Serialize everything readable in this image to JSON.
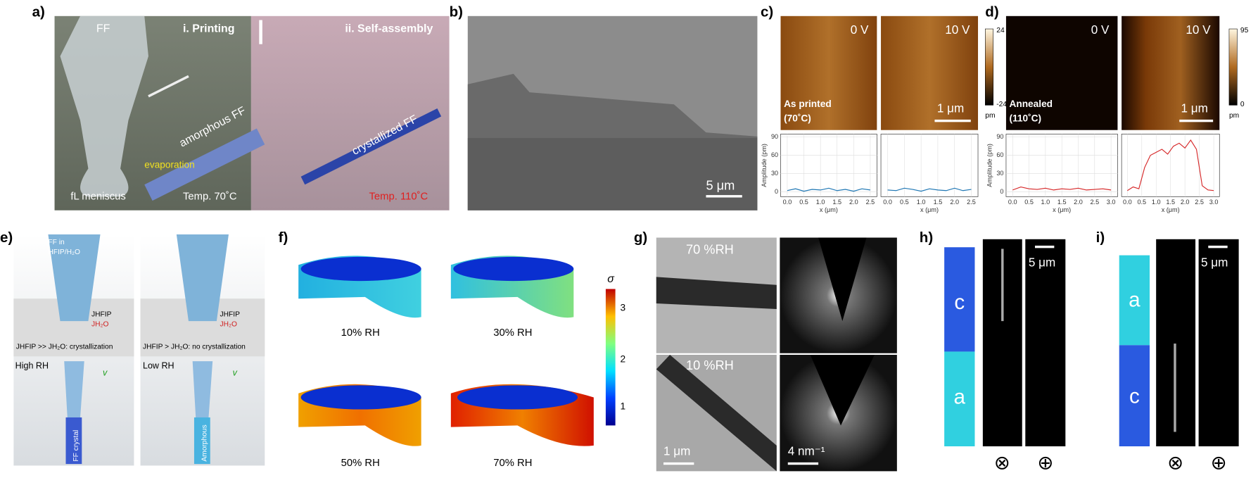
{
  "panels": {
    "a": {
      "label": "a)",
      "ff": "FF",
      "step1": "i. Printing",
      "step2": "ii. Self-assembly",
      "amorphous": "amorphous FF",
      "crystallized": "crystallized FF",
      "evaporation": "evaporation",
      "meniscus": "fL meniscus",
      "temp1": "Temp. 70˚C",
      "temp2": "Temp. 110˚C"
    },
    "b": {
      "label": "b)",
      "scale": "5 μm"
    },
    "c": {
      "label": "c)",
      "v0": "0 V",
      "v1": "10 V",
      "state": "As printed",
      "temp": "(70˚C)",
      "scale": "1 μm",
      "cmax": "24",
      "cmin": "-24",
      "unit": "pm"
    },
    "d": {
      "label": "d)",
      "v0": "0 V",
      "v1": "10 V",
      "state": "Annealed",
      "temp": "(110˚C)",
      "scale": "1 μm",
      "cmax": "95",
      "cmin": "0",
      "unit": "pm"
    },
    "e": {
      "label": "e)",
      "solution1": "FF in",
      "solution2": "HFIP/H₂O",
      "j1": "JHFIP",
      "j2": "JH₂O",
      "j3": "JHFIP",
      "j4": "JH₂O",
      "cond1": "JHFIP >> JH₂O: crystallization",
      "cond2": "JHFIP > JH₂O: no crystallization",
      "rh1": "High RH",
      "rh2": "Low RH",
      "v1": "v",
      "v2": "v",
      "prod1": "FF crystal",
      "prod2": "Amorphous"
    },
    "f": {
      "label": "f)",
      "rh": [
        "10% RH",
        "30% RH",
        "50% RH",
        "70% RH"
      ],
      "sigma": "σ",
      "cticks": [
        "1",
        "2",
        "3"
      ]
    },
    "g": {
      "label": "g)",
      "rh1": "70 %RH",
      "rh2": "10 %RH",
      "scale1": "1 μm",
      "scale2": "4 nm⁻¹"
    },
    "h": {
      "label": "h)",
      "top": "c",
      "bottom": "a",
      "scale": "5 μm",
      "sym1": "⊗",
      "sym2": "⊕"
    },
    "i": {
      "label": "i)",
      "top": "a",
      "bottom": "c",
      "scale": "5 μm",
      "sym1": "⊗",
      "sym2": "⊕"
    }
  },
  "chart_data": [
    {
      "type": "line",
      "xlabel": "x (μm)",
      "ylabel": "Amplitude (pm)",
      "x": [
        0,
        0.25,
        0.5,
        0.75,
        1,
        1.25,
        1.5,
        1.75,
        2,
        2.25,
        2.5
      ],
      "series": [
        {
          "color": "#1f77b4",
          "values": [
            2,
            5,
            1,
            4,
            3,
            6,
            2,
            4,
            1,
            5,
            3
          ]
        }
      ],
      "xlim": [
        -0.2,
        2.7
      ],
      "ylim": [
        -8,
        95
      ],
      "xticks": [
        {
          "value": 0,
          "label": "0.0"
        },
        0.5,
        {
          "value": 1,
          "label": "1.0"
        },
        1.5,
        {
          "value": 2,
          "label": "2.0"
        },
        2.5
      ],
      "yticks": [
        0,
        30,
        60,
        90
      ],
      "grid": true
    },
    {
      "type": "line",
      "xlabel": "x (μm)",
      "x": [
        0,
        0.25,
        0.5,
        0.75,
        1,
        1.25,
        1.5,
        1.75,
        2,
        2.25,
        2.5
      ],
      "series": [
        {
          "color": "#1f77b4",
          "values": [
            3,
            2,
            6,
            4,
            1,
            5,
            3,
            2,
            6,
            2,
            4
          ]
        }
      ],
      "xlim": [
        -0.2,
        2.7
      ],
      "ylim": [
        -8,
        95
      ],
      "xticks": [
        {
          "value": 0,
          "label": "0.0"
        },
        0.5,
        {
          "value": 1,
          "label": "1.0"
        },
        1.5,
        {
          "value": 2,
          "label": "2.0"
        },
        2.5
      ],
      "grid": true
    },
    {
      "type": "line",
      "xlabel": "x (μm)",
      "ylabel": "Amplitude (pm)",
      "x": [
        0,
        0.25,
        0.5,
        0.75,
        1,
        1.25,
        1.5,
        1.75,
        2,
        2.25,
        2.5,
        2.75,
        3
      ],
      "series": [
        {
          "color": "#d62728",
          "values": [
            3,
            8,
            5,
            4,
            6,
            3,
            5,
            4,
            6,
            3,
            4,
            5,
            3
          ]
        }
      ],
      "xlim": [
        -0.2,
        3.2
      ],
      "ylim": [
        -8,
        95
      ],
      "xticks": [
        {
          "value": 0,
          "label": "0.0"
        },
        0.5,
        {
          "value": 1,
          "label": "1.0"
        },
        1.5,
        {
          "value": 2,
          "label": "2.0"
        },
        2.5,
        {
          "value": 3,
          "label": "3.0"
        }
      ],
      "yticks": [
        0,
        30,
        60,
        90
      ],
      "grid": true
    },
    {
      "type": "line",
      "xlabel": "x (μm)",
      "x": [
        0,
        0.2,
        0.4,
        0.6,
        0.8,
        1,
        1.2,
        1.4,
        1.6,
        1.8,
        2,
        2.2,
        2.4,
        2.6,
        2.8,
        3
      ],
      "series": [
        {
          "color": "#d62728",
          "values": [
            2,
            8,
            5,
            40,
            60,
            65,
            70,
            62,
            75,
            80,
            72,
            85,
            70,
            10,
            3,
            2
          ]
        }
      ],
      "xlim": [
        -0.2,
        3.2
      ],
      "ylim": [
        -8,
        95
      ],
      "xticks": [
        {
          "value": 0,
          "label": "0.0"
        },
        0.5,
        {
          "value": 1,
          "label": "1.0"
        },
        1.5,
        {
          "value": 2,
          "label": "2.0"
        },
        2.5,
        {
          "value": 3,
          "label": "3.0"
        }
      ],
      "grid": true
    }
  ]
}
